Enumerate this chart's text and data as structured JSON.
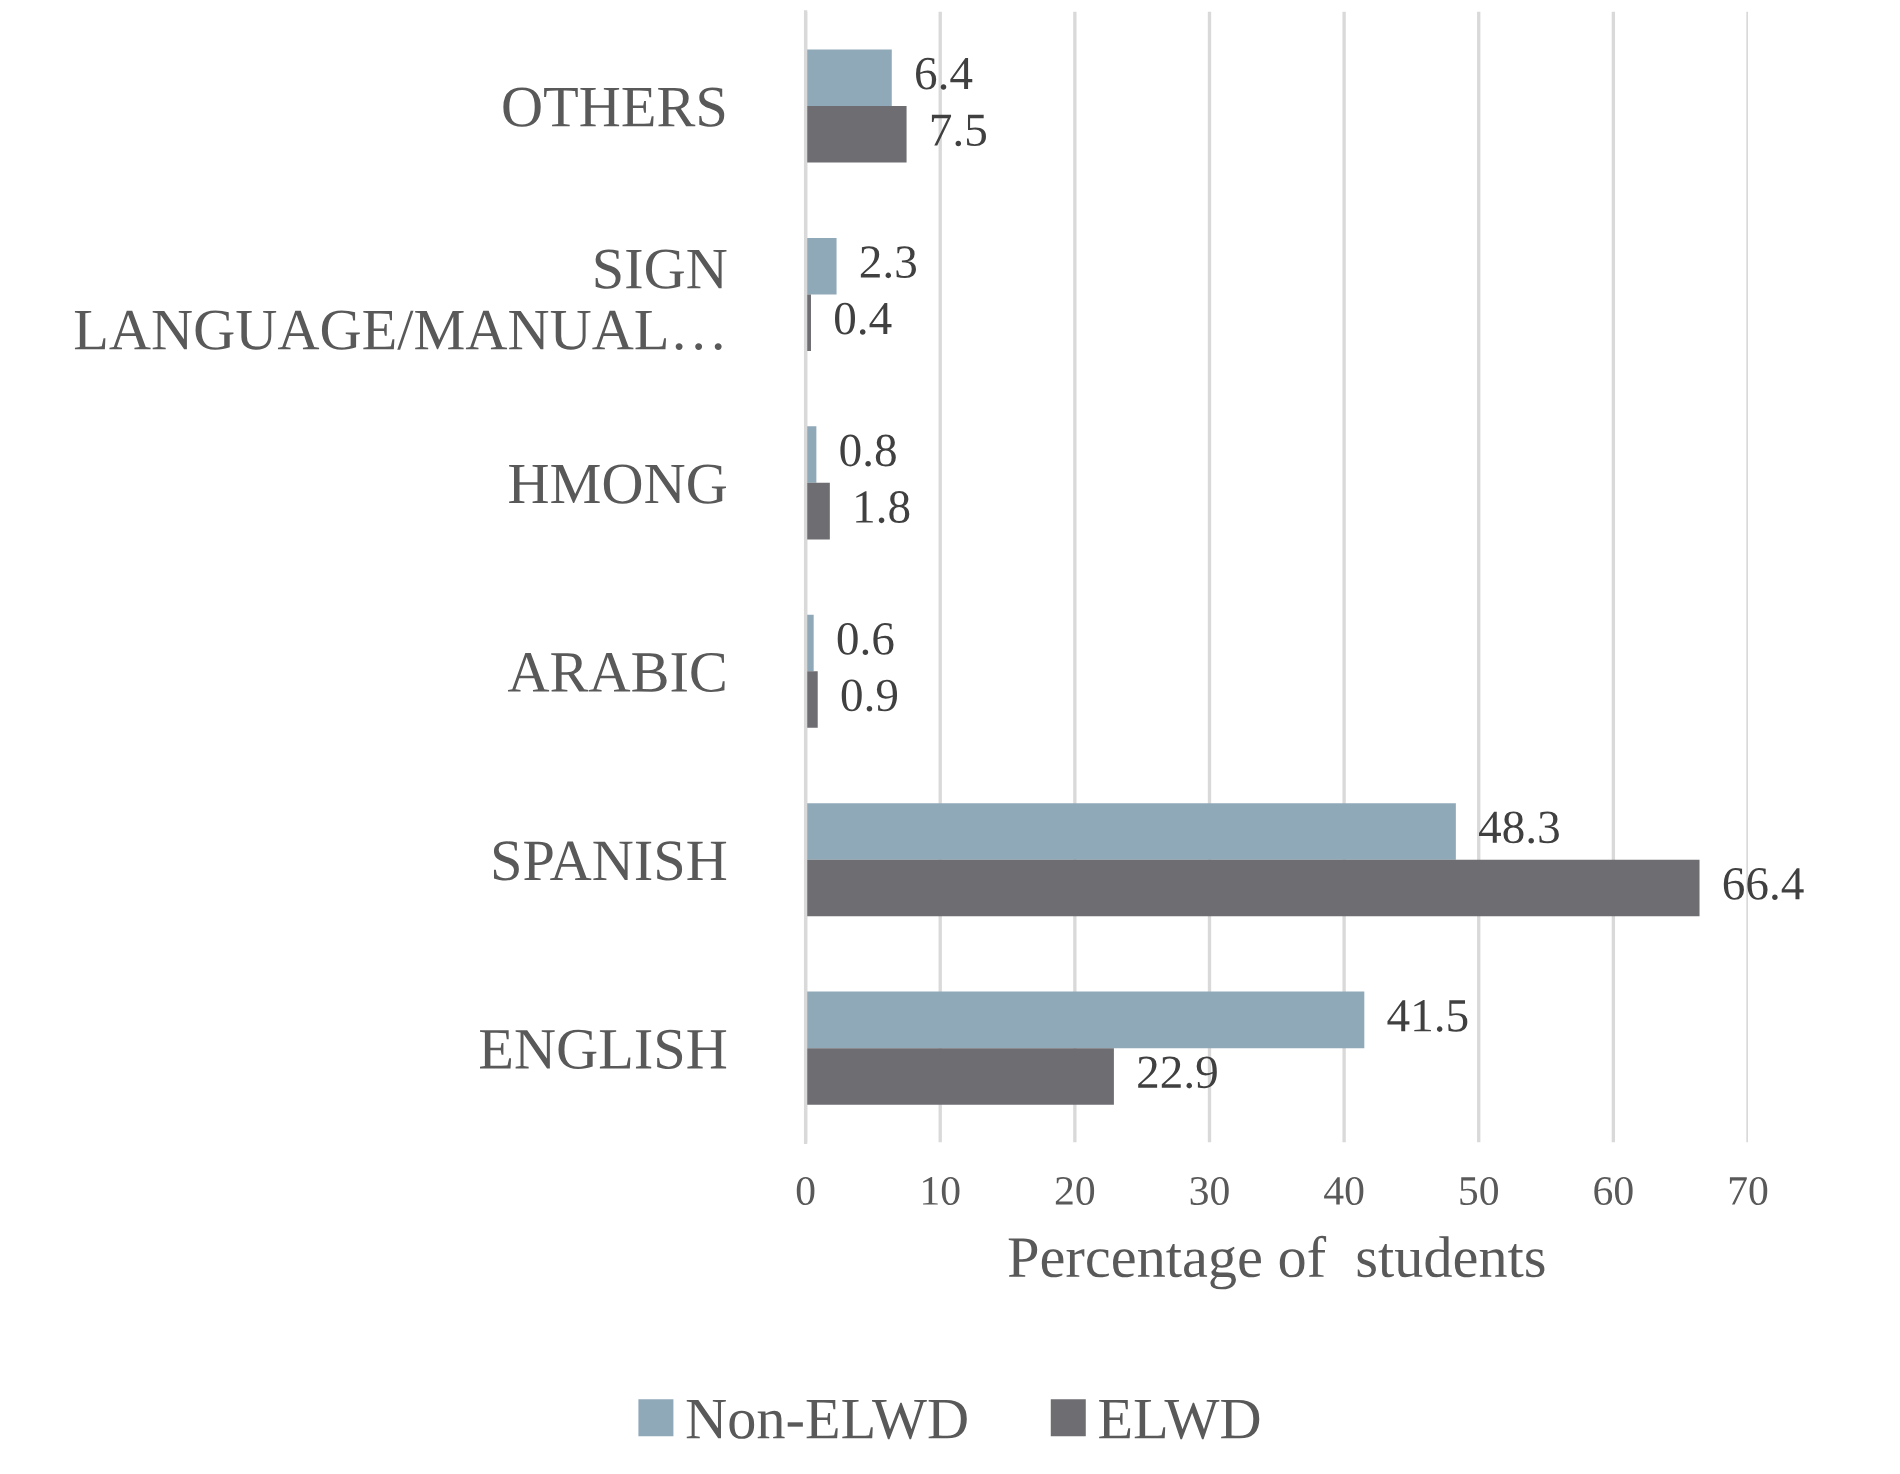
{
  "chart_data": {
    "type": "bar",
    "orientation": "horizontal",
    "categories": [
      "OTHERS",
      "SIGN\nLANGUAGE/MANUAL…",
      "HMONG",
      "ARABIC",
      "SPANISH",
      "ENGLISH"
    ],
    "series": [
      {
        "name": "Non-ELWD",
        "color": "#8fa9b9",
        "values": [
          6.4,
          2.3,
          0.8,
          0.6,
          48.3,
          41.5
        ]
      },
      {
        "name": "ELWD",
        "color": "#6e6d72",
        "values": [
          7.5,
          0.4,
          1.8,
          0.9,
          66.4,
          22.9
        ]
      }
    ],
    "xlabel": "Percentage of  students",
    "xlim": [
      0,
      70
    ],
    "xticks": [
      0,
      10,
      20,
      30,
      40,
      50,
      60,
      70
    ],
    "grid": "x",
    "legend": "bottom",
    "data_labels": true
  }
}
